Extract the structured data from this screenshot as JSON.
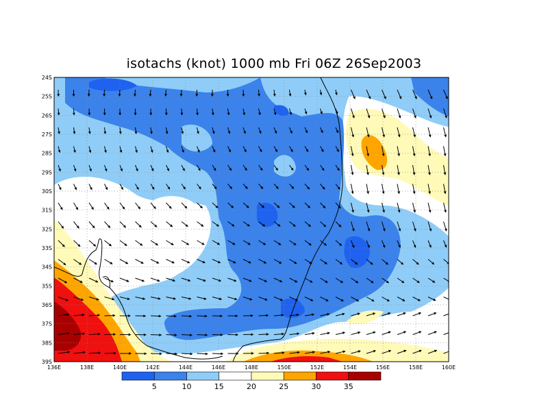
{
  "title": "isotachs (knot) 1000 mb Fri 06Z 26Sep2003",
  "lat_labels": [
    "24S",
    "25S",
    "26S",
    "27S",
    "28S",
    "29S",
    "30S",
    "31S",
    "32S",
    "33S",
    "34S",
    "35S",
    "36S",
    "37S",
    "38S",
    "39S"
  ],
  "lon_labels": [
    "136E",
    "138E",
    "140E",
    "142E",
    "144E",
    "146E",
    "148E",
    "150E",
    "152E",
    "154E",
    "156E",
    "158E",
    "160E"
  ],
  "colorbar": {
    "colors": [
      "#1f62f0",
      "#3b82ea",
      "#8fcdf8",
      "#ffffff",
      "#fffab8",
      "#ffa500",
      "#f01010",
      "#a80000"
    ],
    "labels": [
      "5",
      "10",
      "15",
      "20",
      "25",
      "30",
      "35"
    ]
  },
  "grid": {
    "dotted": true
  }
}
